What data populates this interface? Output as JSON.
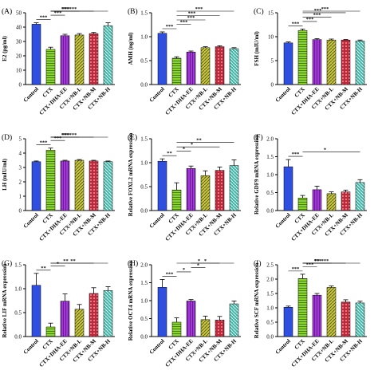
{
  "categories": [
    "Control",
    "CTX",
    "CTX+DHA-EE",
    "CTX+NB-L",
    "CTX+NB-M",
    "CTX+NB-H"
  ],
  "colors": [
    "#2E4FE0",
    "#8CD62A",
    "#A338D8",
    "#C8C83A",
    "#C0283A",
    "#3FB8A8"
  ],
  "chart_data": [
    {
      "type": "bar",
      "panel": "(A)",
      "ylabel": "E2 (pg/ml)",
      "ylim": [
        0,
        50
      ],
      "ticks": [
        0,
        10,
        20,
        30,
        40,
        50
      ],
      "values": [
        42,
        24.5,
        34,
        34.5,
        35.5,
        41
      ],
      "errors": [
        1.0,
        1.5,
        1.0,
        1.0,
        0.8,
        2.0
      ],
      "sig": [
        [
          "0",
          "1",
          "***"
        ],
        [
          "1",
          "2",
          "***"
        ],
        [
          "1",
          "3",
          "***"
        ],
        [
          "1",
          "4",
          "***"
        ],
        [
          "1",
          "5",
          "***"
        ]
      ]
    },
    {
      "type": "bar",
      "panel": "(B)",
      "ylabel": "AMH (ng/ml)",
      "ylim": [
        0,
        1.5
      ],
      "ticks": [
        0.0,
        0.5,
        1.0,
        1.5
      ],
      "values": [
        1.07,
        0.55,
        0.68,
        0.77,
        0.79,
        0.75
      ],
      "errors": [
        0.03,
        0.03,
        0.02,
        0.02,
        0.02,
        0.02
      ],
      "sig": [
        [
          "0",
          "1",
          "***"
        ],
        [
          "1",
          "2",
          "***"
        ],
        [
          "1",
          "3",
          "***"
        ],
        [
          "1",
          "4",
          "***"
        ],
        [
          "1",
          "5",
          "***"
        ]
      ]
    },
    {
      "type": "bar",
      "panel": "(C)",
      "ylabel": "FSH (mIU/ml)",
      "ylim": [
        0,
        15
      ],
      "ticks": [
        0,
        5,
        10,
        15
      ],
      "values": [
        8.7,
        11.3,
        9.4,
        9.3,
        9.3,
        9.1
      ],
      "errors": [
        0.2,
        0.3,
        0.2,
        0.2,
        0.1,
        0.2
      ],
      "sig": [
        [
          "0",
          "1",
          "***"
        ],
        [
          "1",
          "2",
          "***"
        ],
        [
          "1",
          "3",
          "***"
        ],
        [
          "1",
          "4",
          "***"
        ],
        [
          "1",
          "5",
          "***"
        ]
      ]
    },
    {
      "type": "bar",
      "panel": "(D)",
      "ylabel": "LH (mIU/ml)",
      "ylim": [
        0,
        5
      ],
      "ticks": [
        0,
        1,
        2,
        3,
        4,
        5
      ],
      "values": [
        3.4,
        4.2,
        3.45,
        3.5,
        3.45,
        3.4
      ],
      "errors": [
        0.05,
        0.15,
        0.05,
        0.05,
        0.05,
        0.05
      ],
      "sig": [
        [
          "0",
          "1",
          "***"
        ],
        [
          "1",
          "2",
          "***"
        ],
        [
          "1",
          "3",
          "***"
        ],
        [
          "1",
          "4",
          "***"
        ],
        [
          "1",
          "5",
          "***"
        ]
      ]
    },
    {
      "type": "bar",
      "panel": "(E)",
      "ylabel": "Relative FOXL2 mRNA expression",
      "ylim": [
        0,
        1.5
      ],
      "ticks": [
        0.0,
        0.5,
        1.0,
        1.5
      ],
      "values": [
        1.03,
        0.43,
        0.88,
        0.73,
        0.84,
        0.94
      ],
      "errors": [
        0.05,
        0.15,
        0.05,
        0.1,
        0.07,
        0.12
      ],
      "sig": [
        [
          "0",
          "1",
          "**"
        ],
        [
          "1",
          "2",
          "*"
        ],
        [
          "1",
          "4",
          "*"
        ],
        [
          "1",
          "5",
          "**"
        ]
      ]
    },
    {
      "type": "bar",
      "panel": "(F)",
      "ylabel": "Relative GDF9 mRNA expression",
      "ylim": [
        0,
        2.0
      ],
      "ticks": [
        0.0,
        0.5,
        1.0,
        1.5,
        2.0
      ],
      "values": [
        1.22,
        0.35,
        0.58,
        0.47,
        0.52,
        0.78
      ],
      "errors": [
        0.2,
        0.07,
        0.1,
        0.05,
        0.05,
        0.08
      ],
      "sig": [
        [
          "0",
          "1",
          "***"
        ],
        [
          "1",
          "5",
          "*"
        ]
      ]
    },
    {
      "type": "bar",
      "panel": "(G)",
      "ylabel": "Relative LIF mRNA expression",
      "ylim": [
        0,
        1.5
      ],
      "ticks": [
        0.0,
        0.5,
        1.0,
        1.5
      ],
      "values": [
        1.07,
        0.2,
        0.74,
        0.57,
        0.9,
        0.96
      ],
      "errors": [
        0.25,
        0.08,
        0.15,
        0.1,
        0.12,
        0.08
      ],
      "sig": [
        [
          "0",
          "1",
          "**"
        ],
        [
          "1",
          "2",
          "*"
        ],
        [
          "1",
          "4",
          "**"
        ],
        [
          "1",
          "5",
          "**"
        ]
      ]
    },
    {
      "type": "bar",
      "panel": "(H)",
      "ylabel": "Relative OCT4 mRNA expression",
      "ylim": [
        0,
        2.0
      ],
      "ticks": [
        0.0,
        0.5,
        1.0,
        1.5,
        2.0
      ],
      "values": [
        1.37,
        0.4,
        0.99,
        0.47,
        0.46,
        0.91
      ],
      "errors": [
        0.22,
        0.12,
        0.04,
        0.1,
        0.1,
        0.08
      ],
      "sig": [
        [
          "0",
          "1",
          "***"
        ],
        [
          "1",
          "2",
          "*"
        ],
        [
          "2",
          "3",
          "*"
        ],
        [
          "2",
          "4",
          "*"
        ],
        [
          "1",
          "5",
          "*"
        ]
      ]
    },
    {
      "type": "bar",
      "panel": "(I)",
      "ylabel": "Relative SCF mRNA expression",
      "ylim": [
        0,
        2.5
      ],
      "ticks": [
        0.0,
        0.5,
        1.0,
        1.5,
        2.0,
        2.5
      ],
      "values": [
        1.02,
        2.02,
        1.44,
        1.71,
        1.2,
        1.17
      ],
      "errors": [
        0.04,
        0.15,
        0.06,
        0.05,
        0.08,
        0.06
      ],
      "sig": [
        [
          "0",
          "1",
          "***"
        ],
        [
          "1",
          "2",
          "***"
        ],
        [
          "1",
          "3",
          "**"
        ],
        [
          "1",
          "4",
          "***"
        ],
        [
          "1",
          "5",
          "***"
        ]
      ]
    }
  ]
}
